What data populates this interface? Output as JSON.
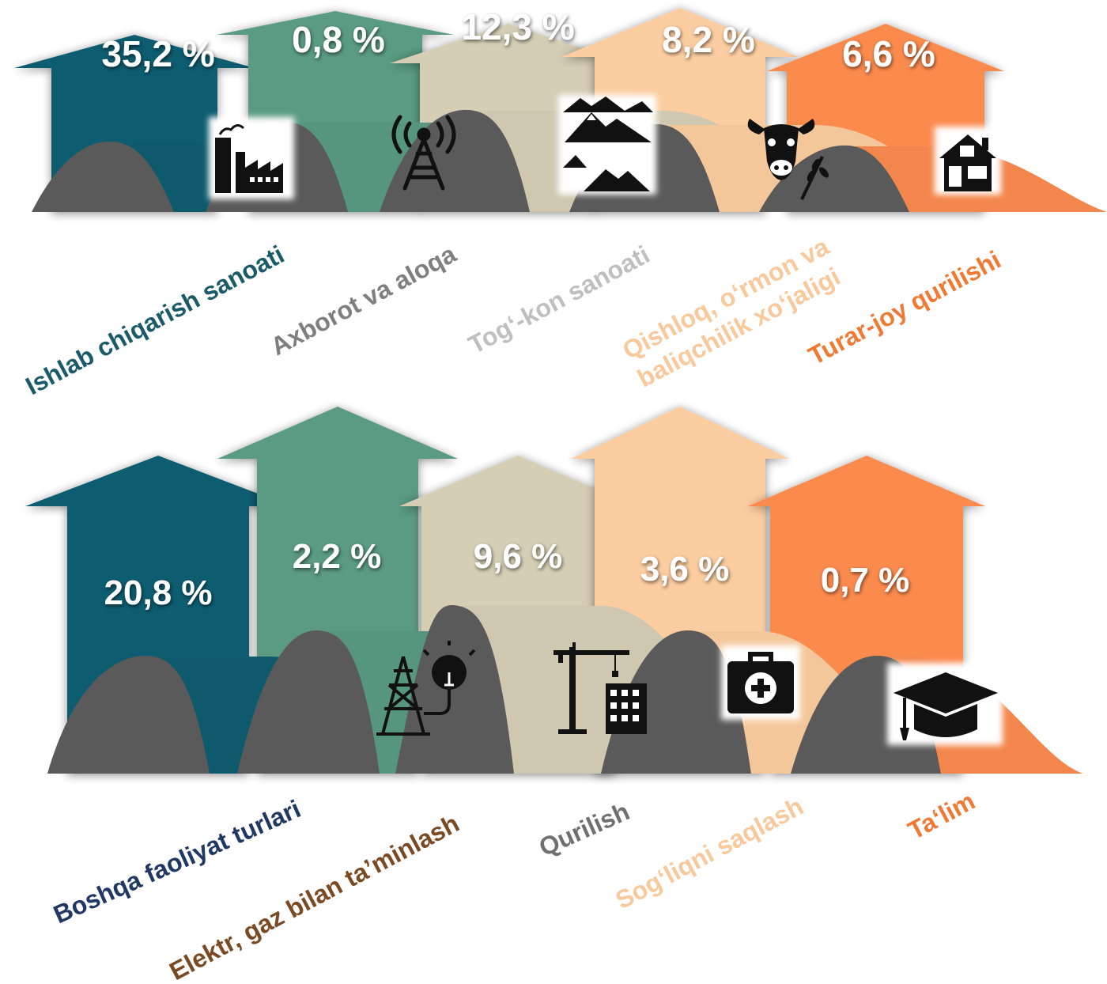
{
  "chart_data": [
    {
      "type": "bar",
      "categories": [
        "Ishlab chiqarish sanoati",
        "Axborot va aloqa",
        "Tog‘-kon sanoati",
        "Qishloq, o‘rmon va baliqchilik xo‘jaligi",
        "Turar-joy qurilishi"
      ],
      "value_labels": [
        "35,2 %",
        "0,8 %",
        "12,3 %",
        "8,2 %",
        "6,6 %"
      ],
      "values": [
        35.2,
        0.8,
        12.3,
        8.2,
        6.6
      ],
      "icons": [
        "factory-icon",
        "radio-tower-icon",
        "mountains-icon",
        "cow-wheat-icon",
        "house-icon"
      ],
      "colors": [
        "#0f5c70",
        "#5a9b82",
        "#d5cdb4",
        "#fccda0",
        "#fb8a4e"
      ],
      "label_colors": [
        "#1a5b6a",
        "#7f7f7f",
        "#bfbfbf",
        "#f9c89b",
        "#f07a34"
      ]
    },
    {
      "type": "bar",
      "categories": [
        "Boshqa faoliyat turlari",
        "Elektr, gaz bilan ta’minlash",
        "Qurilish",
        "Sog‘liqni saqlash",
        "Ta‘lim"
      ],
      "value_labels": [
        "20,8 %",
        "2,2 %",
        "9,6 %",
        "3,6 %",
        "0,7 %"
      ],
      "values": [
        20.8,
        2.2,
        9.6,
        3.6,
        0.7
      ],
      "icons": [
        "power-bulb-icon",
        "crane-building-icon",
        "first-aid-kit-icon",
        "graduation-cap-icon"
      ],
      "colors": [
        "#0f5c70",
        "#5a9b82",
        "#d5cdb4",
        "#fccda0",
        "#fb8a4e"
      ],
      "label_colors": [
        "#1f3864",
        "#7b4a22",
        "#707070",
        "#f9c89b",
        "#f07a34"
      ]
    }
  ]
}
